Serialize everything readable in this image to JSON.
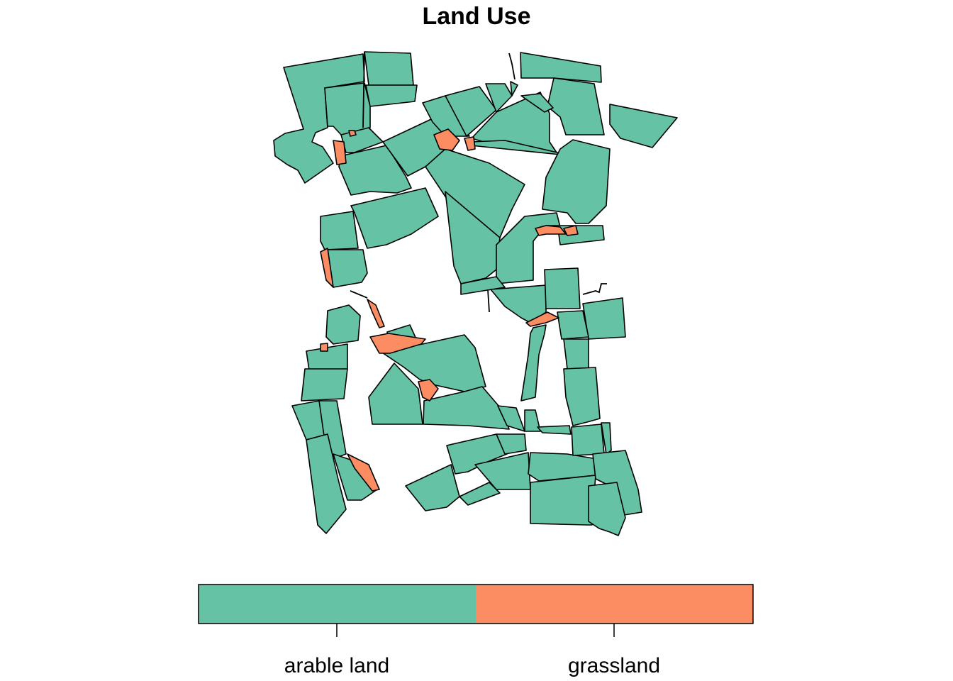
{
  "title": "Land Use",
  "legend": {
    "categories": [
      {
        "label": "arable land",
        "color": "#66C2A5"
      },
      {
        "label": "grassland",
        "color": "#FC8D62"
      }
    ]
  }
}
